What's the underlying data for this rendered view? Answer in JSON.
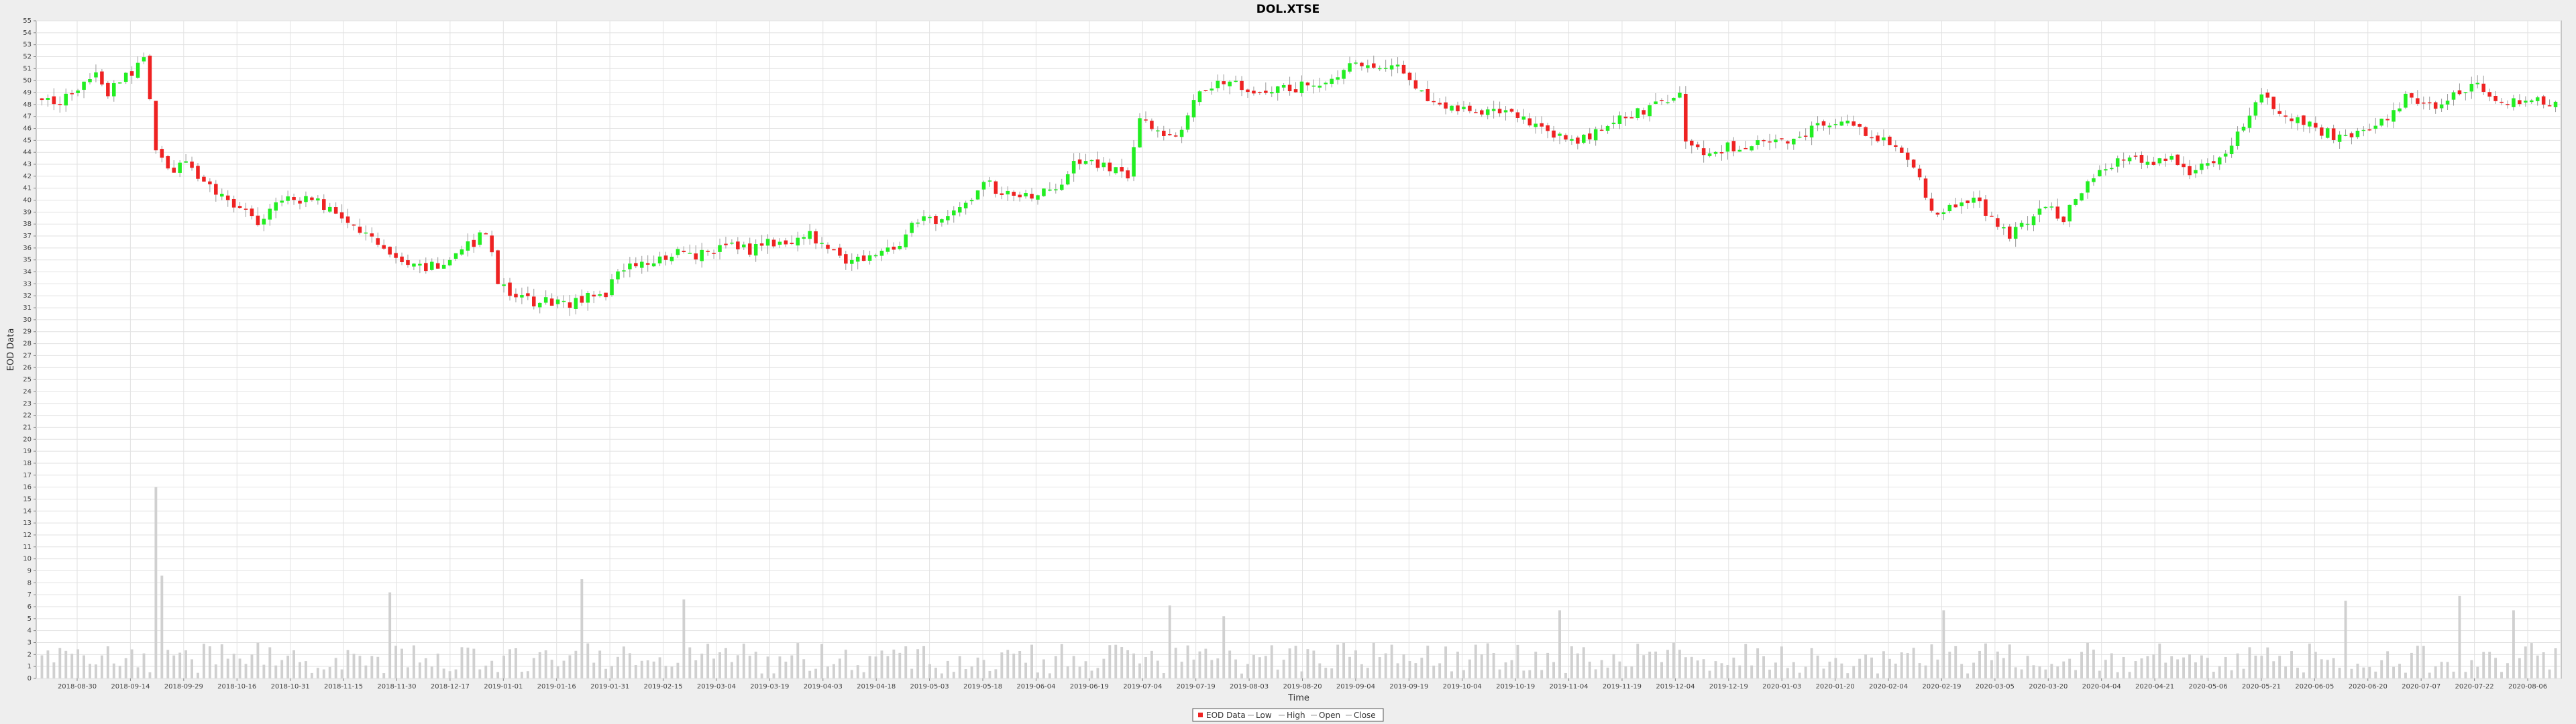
{
  "chart_data": {
    "type": "candlestick",
    "title": "DOL.XTSE",
    "xlabel": "Time",
    "ylabel": "EOD Data",
    "ylim": [
      0,
      55
    ],
    "grid": true,
    "legend_position": "bottom-center",
    "legend": [
      "EOD Data",
      "Low",
      "High",
      "Open",
      "Close"
    ],
    "x_tick_labels": [
      "2018-08-30",
      "2018-09-14",
      "2018-09-29",
      "2018-10-16",
      "2018-10-31",
      "2018-11-15",
      "2018-11-30",
      "2018-12-17",
      "2019-01-01",
      "2019-01-16",
      "2019-01-31",
      "2019-02-15",
      "2019-03-04",
      "2019-03-19",
      "2019-04-03",
      "2019-04-18",
      "2019-05-03",
      "2019-05-18",
      "2019-06-04",
      "2019-06-19",
      "2019-07-04",
      "2019-07-19",
      "2019-08-03",
      "2019-08-20",
      "2019-09-04",
      "2019-09-19",
      "2019-10-04",
      "2019-10-19",
      "2019-11-04",
      "2019-11-19",
      "2019-12-04",
      "2019-12-19",
      "2020-01-03",
      "2020-01-20",
      "2020-02-04",
      "2020-02-19",
      "2020-03-05",
      "2020-03-20",
      "2020-04-04",
      "2020-04-21",
      "2020-05-06",
      "2020-05-21",
      "2020-06-05",
      "2020-06-20",
      "2020-07-07",
      "2020-07-22",
      "2020-08-06"
    ],
    "close_path": [
      [
        0,
        48.5
      ],
      [
        3,
        48.3
      ],
      [
        6,
        49.2
      ],
      [
        9,
        50.5
      ],
      [
        11,
        49.0
      ],
      [
        14,
        50.2
      ],
      [
        16,
        51.5
      ],
      [
        17,
        52.0
      ],
      [
        19,
        44.5
      ],
      [
        21,
        42.5
      ],
      [
        24,
        43.0
      ],
      [
        27,
        41.5
      ],
      [
        30,
        40.5
      ],
      [
        33,
        39.2
      ],
      [
        36,
        38.0
      ],
      [
        39,
        39.5
      ],
      [
        42,
        40.2
      ],
      [
        45,
        39.8
      ],
      [
        48,
        39.5
      ],
      [
        51,
        38.0
      ],
      [
        54,
        37.0
      ],
      [
        57,
        36.0
      ],
      [
        60,
        35.0
      ],
      [
        63,
        34.3
      ],
      [
        66,
        34.6
      ],
      [
        69,
        35.5
      ],
      [
        72,
        36.5
      ],
      [
        74,
        37.5
      ],
      [
        76,
        33.0
      ],
      [
        79,
        32.0
      ],
      [
        82,
        31.5
      ],
      [
        85,
        31.6
      ],
      [
        88,
        31.4
      ],
      [
        91,
        31.8
      ],
      [
        94,
        32.2
      ],
      [
        97,
        34.5
      ],
      [
        100,
        34.7
      ],
      [
        103,
        35.2
      ],
      [
        106,
        35.5
      ],
      [
        109,
        35.4
      ],
      [
        112,
        35.8
      ],
      [
        115,
        36.5
      ],
      [
        118,
        35.8
      ],
      [
        121,
        36.6
      ],
      [
        124,
        36.3
      ],
      [
        127,
        37.2
      ],
      [
        130,
        36.5
      ],
      [
        133,
        35.2
      ],
      [
        136,
        35.0
      ],
      [
        139,
        35.4
      ],
      [
        142,
        35.8
      ],
      [
        145,
        37.8
      ],
      [
        148,
        38.5
      ],
      [
        151,
        38.3
      ],
      [
        154,
        39.5
      ],
      [
        157,
        41.5
      ],
      [
        160,
        40.6
      ],
      [
        163,
        40.4
      ],
      [
        166,
        40.3
      ],
      [
        169,
        41.0
      ],
      [
        172,
        42.9
      ],
      [
        175,
        43.1
      ],
      [
        178,
        42.5
      ],
      [
        181,
        42.2
      ],
      [
        183,
        46.8
      ],
      [
        186,
        46.0
      ],
      [
        189,
        45.0
      ],
      [
        192,
        48.4
      ],
      [
        195,
        49.5
      ],
      [
        198,
        50.0
      ],
      [
        201,
        49.0
      ],
      [
        204,
        49.1
      ],
      [
        207,
        49.2
      ],
      [
        210,
        49.6
      ],
      [
        213,
        49.8
      ],
      [
        216,
        50.6
      ],
      [
        219,
        51.8
      ],
      [
        222,
        51.0
      ],
      [
        225,
        51.5
      ],
      [
        228,
        50.3
      ],
      [
        231,
        48.2
      ],
      [
        234,
        47.8
      ],
      [
        237,
        47.6
      ],
      [
        240,
        47.5
      ],
      [
        243,
        47.2
      ],
      [
        246,
        47.0
      ],
      [
        249,
        46.5
      ],
      [
        252,
        45.5
      ],
      [
        255,
        44.8
      ],
      [
        258,
        45.5
      ],
      [
        261,
        46.5
      ],
      [
        264,
        47.0
      ],
      [
        267,
        47.4
      ],
      [
        270,
        48.2
      ],
      [
        273,
        48.6
      ],
      [
        274,
        45.0
      ],
      [
        277,
        44.0
      ],
      [
        280,
        44.3
      ],
      [
        283,
        44.6
      ],
      [
        286,
        45.0
      ],
      [
        289,
        45.4
      ],
      [
        292,
        45.0
      ],
      [
        295,
        45.8
      ],
      [
        298,
        46.5
      ],
      [
        301,
        47.0
      ],
      [
        304,
        45.5
      ],
      [
        307,
        44.8
      ],
      [
        310,
        44.0
      ],
      [
        313,
        41.5
      ],
      [
        316,
        38.5
      ],
      [
        319,
        39.5
      ],
      [
        322,
        40.2
      ],
      [
        325,
        38.5
      ],
      [
        328,
        37.0
      ],
      [
        331,
        38.0
      ],
      [
        334,
        39.5
      ],
      [
        337,
        38.5
      ],
      [
        340,
        41.0
      ],
      [
        343,
        42.5
      ],
      [
        346,
        43.2
      ],
      [
        349,
        43.4
      ],
      [
        352,
        43.0
      ],
      [
        355,
        43.3
      ],
      [
        358,
        42.0
      ],
      [
        361,
        43.0
      ],
      [
        364,
        44.0
      ],
      [
        367,
        46.2
      ],
      [
        370,
        48.8
      ],
      [
        373,
        47.5
      ],
      [
        376,
        46.5
      ],
      [
        379,
        46.0
      ],
      [
        382,
        45.4
      ],
      [
        385,
        45.7
      ],
      [
        388,
        46.0
      ],
      [
        391,
        46.8
      ],
      [
        394,
        48.5
      ],
      [
        397,
        47.8
      ],
      [
        400,
        48.2
      ],
      [
        403,
        49.3
      ],
      [
        406,
        49.5
      ],
      [
        409,
        48.2
      ]
    ],
    "volume_peaks": [
      [
        19,
        16
      ],
      [
        20,
        8.6
      ],
      [
        58,
        7.2
      ],
      [
        90,
        8.3
      ],
      [
        107,
        6.6
      ],
      [
        188,
        6.1
      ],
      [
        197,
        5.2
      ],
      [
        253,
        5.7
      ],
      [
        317,
        5.7
      ],
      [
        384,
        6.5
      ],
      [
        403,
        6.9
      ],
      [
        412,
        5.7
      ]
    ]
  }
}
